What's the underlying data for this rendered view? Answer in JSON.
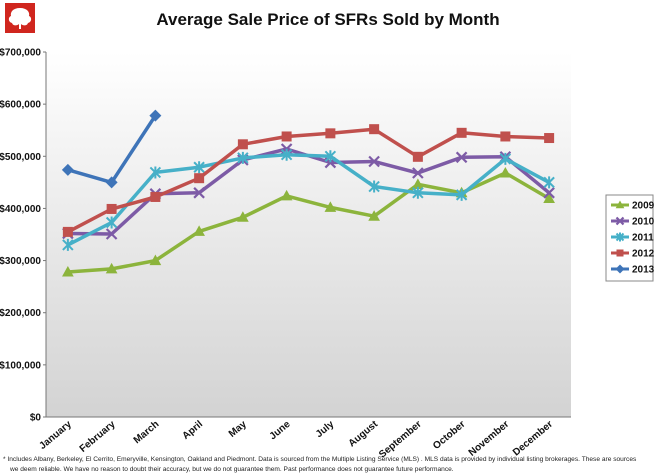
{
  "colors": {
    "logo_red": "#d0261e",
    "series": {
      "2009": "#8cb43c",
      "2010": "#7d5ba6",
      "2011": "#46b0c8",
      "2012": "#c0504d",
      "2013": "#3e74b8"
    }
  },
  "icons": {
    "logo": "tree-logo-icon"
  },
  "footnote": {
    "line1": "* Includes Albany, Berkeley, El Cerrito, Emeryville, Kensington, Oakland and Piedmont. Data is sourced from the Multiple Listing Service (MLS) . MLS data is provided by individual listing brokerages. These are sources",
    "line2": "we deem reliable. We have no reason to doubt their accuracy, but we do not guarantee them. Past performance does not guarantee future performance."
  },
  "chart_data": {
    "type": "line",
    "title": "Average Sale Price of SFRs Sold by Month",
    "xlabel": "",
    "ylabel": "",
    "categories": [
      "January",
      "February",
      "March",
      "April",
      "May",
      "June",
      "July",
      "August",
      "September",
      "October",
      "November",
      "December"
    ],
    "ylim": [
      0,
      700000
    ],
    "yticks": [
      "$0",
      "$100,000",
      "$200,000",
      "$300,000",
      "$400,000",
      "$500,000",
      "$600,000",
      "$700,000"
    ],
    "grid": false,
    "legend_position": "right",
    "series": [
      {
        "name": "2009",
        "marker": "triangle",
        "values": [
          278000,
          284000,
          300000,
          356000,
          383000,
          424000,
          402000,
          385000,
          446000,
          430000,
          468000,
          419000
        ]
      },
      {
        "name": "2010",
        "marker": "x",
        "values": [
          352000,
          351000,
          428000,
          430000,
          493000,
          514000,
          488000,
          490000,
          468000,
          498000,
          499000,
          430000
        ]
      },
      {
        "name": "2011",
        "marker": "asterisk",
        "values": [
          330000,
          373000,
          469000,
          479000,
          497000,
          503000,
          500000,
          442000,
          430000,
          426000,
          495000,
          450000
        ]
      },
      {
        "name": "2012",
        "marker": "square",
        "values": [
          355000,
          399000,
          422000,
          458000,
          523000,
          538000,
          544000,
          552000,
          499000,
          545000,
          538000,
          535000
        ]
      },
      {
        "name": "2013",
        "marker": "diamond",
        "values": [
          474000,
          450000,
          578000,
          null,
          null,
          null,
          null,
          null,
          null,
          null,
          null,
          null
        ]
      }
    ]
  }
}
